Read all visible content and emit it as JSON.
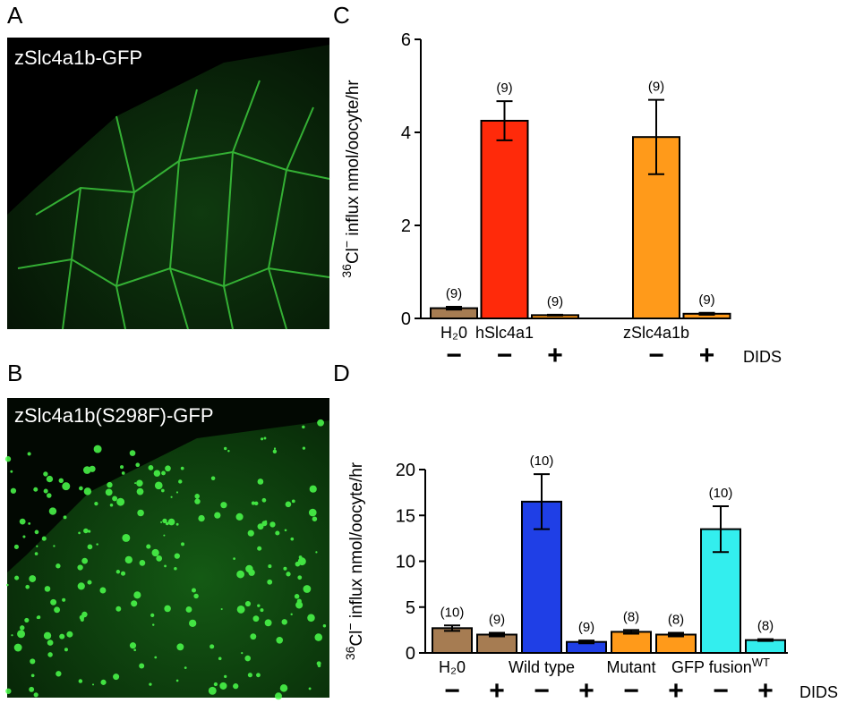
{
  "panel_labels": [
    "A",
    "B",
    "C",
    "D"
  ],
  "images": [
    {
      "label": "zSlc4a1b-GFP"
    },
    {
      "label": "zSlc4a1b(S298F)-GFP"
    }
  ],
  "chart_data": [
    {
      "type": "bar",
      "ylabel": {
        "mass": "36",
        "ion": "Cl",
        "charge": "−",
        "rest": " influx nmol/oocyte/hr"
      },
      "categories": [
        "H₂0",
        "hSlc4a1",
        null,
        null,
        "zSlc4a1b",
        null
      ],
      "category_superscripts": [
        null,
        null,
        null,
        null,
        null,
        null
      ],
      "values": [
        0.22,
        4.25,
        0.07,
        null,
        3.9,
        0.1
      ],
      "errors": [
        0.03,
        0.42,
        0.01,
        null,
        0.8,
        0.02
      ],
      "n_labels": [
        "(9)",
        "(9)",
        "(9)",
        null,
        "(9)",
        "(9)"
      ],
      "colors": [
        "#a67c52",
        "#ff2a0a",
        "#ff9a1a",
        null,
        "#ff9a1a",
        "#ff9a1a"
      ],
      "dids": [
        "−",
        "−",
        "+",
        null,
        "−",
        "+"
      ],
      "dids_label": "DIDS",
      "ylim": [
        0,
        6
      ],
      "yticks": [
        0,
        2,
        4,
        6
      ]
    },
    {
      "type": "bar",
      "ylabel": {
        "mass": "36",
        "ion": "Cl",
        "charge": "−",
        "rest": " influx nmol/oocyte/hr"
      },
      "categories": [
        "H₂0",
        null,
        "Wild type",
        null,
        "Mutant",
        null,
        "GFP fusion",
        null
      ],
      "category_superscripts": [
        null,
        null,
        null,
        null,
        null,
        null,
        "WT",
        null
      ],
      "values": [
        2.7,
        2.0,
        16.5,
        1.2,
        2.3,
        2.0,
        13.5,
        1.4
      ],
      "errors": [
        0.3,
        0.2,
        3.0,
        0.15,
        0.2,
        0.2,
        2.5,
        0.1
      ],
      "n_labels": [
        "(10)",
        "(9)",
        "(10)",
        "(9)",
        "(8)",
        "(8)",
        "(10)",
        "(8)"
      ],
      "colors": [
        "#a67c52",
        "#a67c52",
        "#1f3fe6",
        "#1f3fe6",
        "#ff9a1a",
        "#ff9a1a",
        "#33eeee",
        "#33eeee"
      ],
      "dids": [
        "−",
        "+",
        "−",
        "+",
        "−",
        "+",
        "−",
        "+"
      ],
      "dids_label": "DIDS",
      "ylim": [
        0,
        20
      ],
      "yticks": [
        0,
        5,
        10,
        15,
        20
      ]
    }
  ]
}
